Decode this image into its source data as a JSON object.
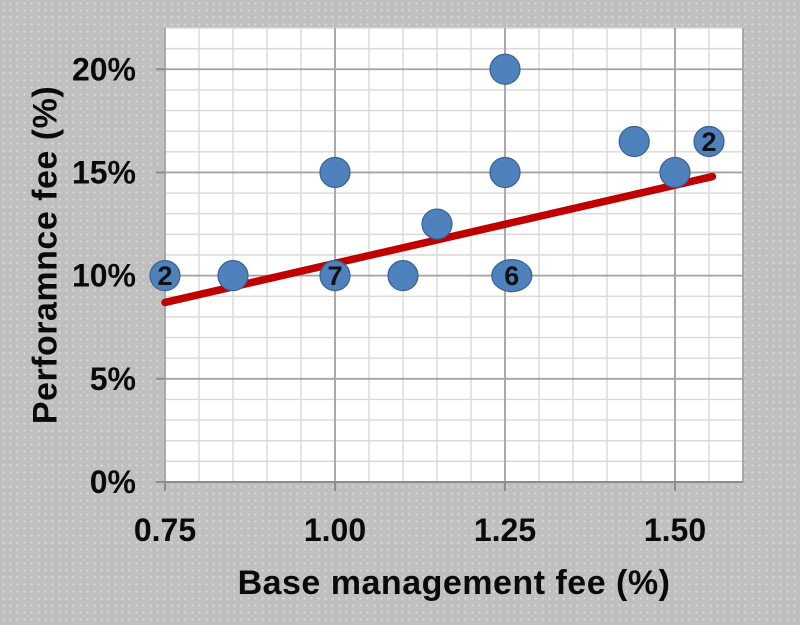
{
  "chart_data": {
    "type": "scatter",
    "title": "",
    "xlabel": "Base management fee (%)",
    "ylabel": "Perforamnce fee (%)",
    "xlim": [
      0.75,
      1.6
    ],
    "ylim": [
      0,
      22
    ],
    "x_major_ticks": [
      0.75,
      1.0,
      1.25,
      1.5
    ],
    "x_tick_labels": [
      "0.75",
      "1.00",
      "1.25",
      "1.50"
    ],
    "y_major_ticks": [
      0,
      5,
      10,
      15,
      20
    ],
    "y_tick_labels": [
      "0%",
      "5%",
      "10%",
      "15%",
      "20%"
    ],
    "x_minor_step": 0.05,
    "y_minor_step": 1,
    "grid": "minor-and-major",
    "legend": "none",
    "points": [
      {
        "x": 0.75,
        "y": 10,
        "label": "2"
      },
      {
        "x": 0.85,
        "y": 10,
        "label": ""
      },
      {
        "x": 1.0,
        "y": 15,
        "label": ""
      },
      {
        "x": 1.0,
        "y": 10,
        "label": "7"
      },
      {
        "x": 1.1,
        "y": 10,
        "label": ""
      },
      {
        "x": 1.15,
        "y": 12.5,
        "label": ""
      },
      {
        "x": 1.25,
        "y": 20,
        "label": ""
      },
      {
        "x": 1.25,
        "y": 15,
        "label": ""
      },
      {
        "x": 1.26,
        "y": 10,
        "label": "6",
        "wide": true
      },
      {
        "x": 1.44,
        "y": 16.5,
        "label": ""
      },
      {
        "x": 1.5,
        "y": 15,
        "label": ""
      },
      {
        "x": 1.55,
        "y": 16.5,
        "label": "2"
      }
    ],
    "trendline": {
      "x1": 0.75,
      "y1": 8.7,
      "x2": 1.555,
      "y2": 14.8
    },
    "colors": {
      "background": "#bfbfbf",
      "plot_background": "#ffffff",
      "minor_grid": "#d9d9d9",
      "major_grid": "#a3a3a3",
      "axis_line": "#8c8c8c",
      "marker_fill": "#4f81bd",
      "marker_edge": "#38618f",
      "trend_line": "#c00000",
      "text": "#0a0a0a"
    }
  }
}
